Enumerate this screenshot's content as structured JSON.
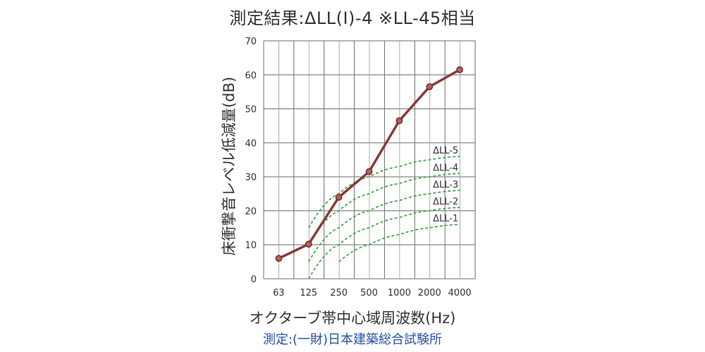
{
  "title": "測定結果:ΔLL(I)-4 ※LL-45相当",
  "footer": "測定:(一財)日本建築総合試験所",
  "chart_data": {
    "type": "line",
    "xlabel": "オクターブ帯中心域周波数(Hz)",
    "ylabel": "床衝撃音レベル低減量(dB)",
    "categories": [
      "63",
      "125",
      "250",
      "500",
      "1000",
      "2000",
      "4000"
    ],
    "ylim": [
      0,
      70
    ],
    "yticks": [
      0,
      10,
      20,
      30,
      40,
      50,
      60,
      70
    ],
    "grid": true,
    "series": [
      {
        "values": [
          6,
          10.2,
          24,
          31.5,
          46.5,
          56.5,
          61.5
        ],
        "color": "#8b3a3a",
        "style": "solid"
      }
    ],
    "reference_curves": [
      {
        "name": "ΔLL-5",
        "color": "#3a9e3a",
        "points": [
          [
            125,
            15
          ],
          [
            250,
            25
          ],
          [
            500,
            30
          ],
          [
            1000,
            33
          ],
          [
            2000,
            35
          ],
          [
            4000,
            36
          ]
        ]
      },
      {
        "name": "ΔLL-4",
        "color": "#3a9e3a",
        "points": [
          [
            125,
            10
          ],
          [
            250,
            20
          ],
          [
            500,
            25
          ],
          [
            1000,
            28
          ],
          [
            2000,
            30
          ],
          [
            4000,
            31
          ]
        ]
      },
      {
        "name": "ΔLL-3",
        "color": "#3a9e3a",
        "points": [
          [
            125,
            5
          ],
          [
            250,
            15
          ],
          [
            500,
            20
          ],
          [
            1000,
            23
          ],
          [
            2000,
            25
          ],
          [
            4000,
            26
          ]
        ]
      },
      {
        "name": "ΔLL-2",
        "color": "#3a9e3a",
        "points": [
          [
            125,
            0
          ],
          [
            250,
            10
          ],
          [
            500,
            15
          ],
          [
            1000,
            18
          ],
          [
            2000,
            20
          ],
          [
            4000,
            21
          ]
        ]
      },
      {
        "name": "ΔLL-1",
        "color": "#3a9e3a",
        "points": [
          [
            250,
            5
          ],
          [
            500,
            10
          ],
          [
            1000,
            13
          ],
          [
            2000,
            15
          ],
          [
            4000,
            16
          ]
        ]
      }
    ]
  }
}
